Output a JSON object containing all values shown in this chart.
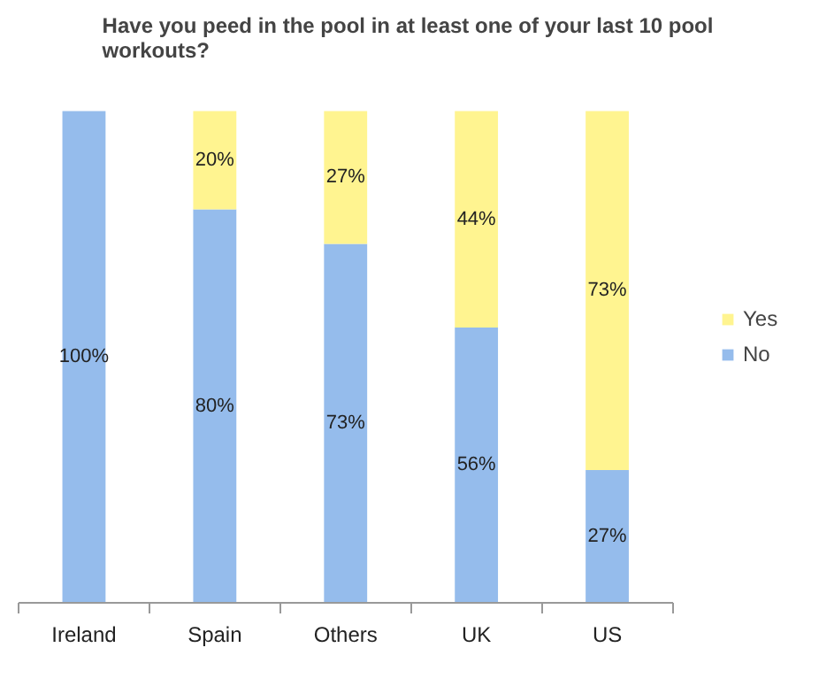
{
  "chart_data": {
    "type": "bar",
    "title": "Have you peed in the pool in at least one of your last 10 pool workouts?",
    "categories": [
      "Ireland",
      "Spain",
      "Others",
      "UK",
      "US"
    ],
    "stacked": true,
    "legend": "right",
    "series": [
      {
        "name": "No",
        "color": "#95bcec",
        "values": [
          100,
          80,
          73,
          56,
          27
        ],
        "value_labels": [
          "100%",
          "80%",
          "73%",
          "56%",
          "27%"
        ]
      },
      {
        "name": "Yes",
        "color": "#fff490",
        "values": [
          0,
          20,
          27,
          44,
          73
        ],
        "value_labels": [
          null,
          "20%",
          "27%",
          "44%",
          "73%"
        ]
      }
    ]
  }
}
